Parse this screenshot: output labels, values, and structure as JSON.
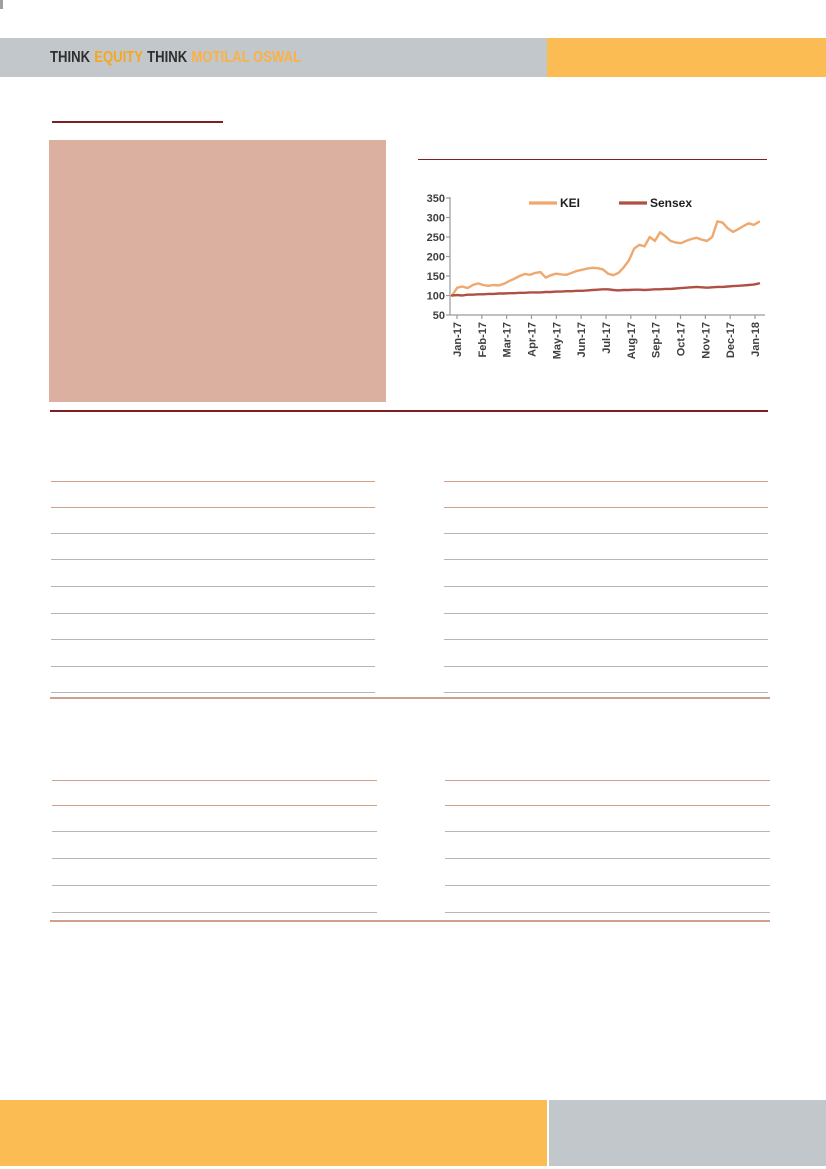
{
  "brand": {
    "think1": "THINK",
    "equity": "EQUITY",
    "think2": "THINK",
    "motilal": "MOTILAL OSWAL"
  },
  "colors": {
    "header_gray": "#c2c7cb",
    "banner_orange": "#fbbd53",
    "brand_dark": "#2e2e2e",
    "brand_orange": "#f6a71f",
    "maroon_rule": "#7d1f24",
    "salmon_rule": "#d0a08a",
    "gray_rule": "#b6b6b6",
    "image_placeholder": "#dcb0a0",
    "kei_line": "#efa86e",
    "sensex_line": "#b04f44"
  },
  "chart_data": {
    "type": "line",
    "title": "",
    "x_labels": [
      "Jan-17",
      "Feb-17",
      "Mar-17",
      "Apr-17",
      "May-17",
      "Jun-17",
      "Jul-17",
      "Aug-17",
      "Sep-17",
      "Oct-17",
      "Nov-17",
      "Dec-17",
      "Jan-18"
    ],
    "yticks": [
      350,
      300,
      250,
      200,
      150,
      100,
      50
    ],
    "ylim": [
      50,
      350
    ],
    "grid": false,
    "legend_position": "top",
    "series": [
      {
        "name": "KEI",
        "color": "#efa86e",
        "values": [
          100,
          120,
          123,
          119,
          127,
          131,
          127,
          125,
          127,
          126,
          130,
          137,
          143,
          150,
          155,
          153,
          158,
          160,
          146,
          152,
          156,
          154,
          153,
          158,
          163,
          166,
          169,
          171,
          170,
          167,
          156,
          152,
          158,
          172,
          190,
          220,
          230,
          226,
          250,
          240,
          262,
          252,
          240,
          236,
          234,
          240,
          245,
          248,
          243,
          240,
          250,
          290,
          287,
          272,
          263,
          270,
          278,
          285,
          281,
          289
        ]
      },
      {
        "name": "Sensex",
        "color": "#b04f44",
        "values": [
          100,
          101,
          100,
          102,
          102,
          103,
          103,
          104,
          104,
          105,
          105,
          106,
          106,
          107,
          107,
          108,
          108,
          108,
          109,
          109,
          110,
          110,
          111,
          111,
          112,
          112,
          113,
          114,
          115,
          116,
          116,
          114,
          113,
          114,
          114,
          115,
          115,
          114,
          115,
          116,
          116,
          117,
          117,
          118,
          119,
          120,
          121,
          122,
          121,
          120,
          121,
          122,
          122,
          123,
          124,
          125,
          126,
          127,
          128,
          131
        ]
      }
    ]
  }
}
